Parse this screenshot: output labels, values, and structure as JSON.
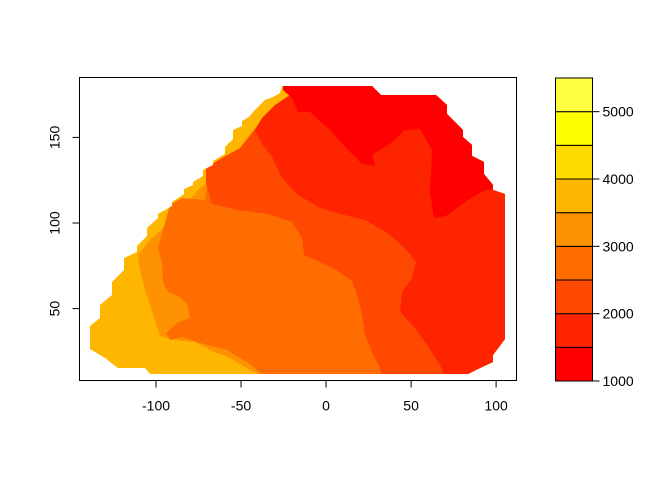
{
  "chart_data": {
    "type": "heatmap",
    "title": "",
    "xlabel": "",
    "ylabel": "",
    "xlim": [
      -145,
      112
    ],
    "ylim": [
      8,
      185
    ],
    "x_ticks": [
      -100,
      -50,
      0,
      50,
      100
    ],
    "x_tick_labels": [
      "-100",
      "-50",
      "0",
      "50",
      "100"
    ],
    "y_ticks": [
      50,
      100,
      150
    ],
    "y_tick_labels": [
      "50",
      "100",
      "150"
    ],
    "grid": false,
    "legend": {
      "position": "right",
      "type": "colorbar",
      "range": [
        1000,
        5000
      ],
      "ticks": [
        1000,
        2000,
        3000,
        4000,
        5000
      ],
      "tick_labels": [
        "1000",
        "2000",
        "3000",
        "4000",
        "5000"
      ],
      "levels": [
        {
          "from": 1000,
          "to": 1500,
          "color": "#FF0000"
        },
        {
          "from": 1500,
          "to": 2000,
          "color": "#FF2400"
        },
        {
          "from": 2000,
          "to": 2500,
          "color": "#FF4900"
        },
        {
          "from": 2500,
          "to": 3000,
          "color": "#FF6D00"
        },
        {
          "from": 3000,
          "to": 3500,
          "color": "#FF9200"
        },
        {
          "from": 3500,
          "to": 4000,
          "color": "#FFB600"
        },
        {
          "from": 4000,
          "to": 4500,
          "color": "#FFDB00"
        },
        {
          "from": 4500,
          "to": 5000,
          "color": "#FFFF00"
        },
        {
          "from": 5000,
          "to": 5500,
          "color": "#FFFF40"
        }
      ]
    }
  }
}
